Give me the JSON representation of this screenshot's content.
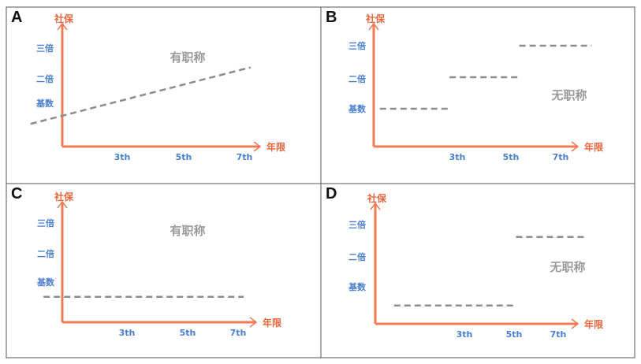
{
  "chart_data": [
    {
      "panel": "A",
      "type": "line",
      "ylabel": "社保",
      "xlabel": "年限",
      "y_levels": [
        "基数",
        "二倍",
        "三倍"
      ],
      "x_ticks": [
        "3th",
        "5th",
        "7th"
      ],
      "annotation": "有职称",
      "series": [
        {
          "x": [
            0,
            7.2
          ],
          "y": [
            0.25,
            2.3
          ]
        }
      ]
    },
    {
      "panel": "B",
      "type": "line",
      "ylabel": "社保",
      "xlabel": "年限",
      "y_levels": [
        "基数",
        "二倍",
        "三倍"
      ],
      "x_ticks": [
        "3th",
        "5th",
        "7th"
      ],
      "annotation": "无职称",
      "series": [
        {
          "x": [
            0,
            2.7
          ],
          "y": [
            1,
            1
          ]
        },
        {
          "x": [
            2.7,
            5.4
          ],
          "y": [
            2,
            2
          ]
        },
        {
          "x": [
            5.4,
            8.2
          ],
          "y": [
            3,
            3
          ]
        }
      ]
    },
    {
      "panel": "C",
      "type": "line",
      "ylabel": "社保",
      "xlabel": "年限",
      "y_levels": [
        "基数",
        "二倍",
        "三倍"
      ],
      "x_ticks": [
        "3th",
        "5th",
        "7th"
      ],
      "annotation": "有职称",
      "series": [
        {
          "x": [
            0,
            7.2
          ],
          "y": [
            0.5,
            0.5
          ]
        }
      ]
    },
    {
      "panel": "D",
      "type": "line",
      "ylabel": "社保",
      "xlabel": "年限",
      "y_levels": [
        "基数",
        "二倍",
        "三倍"
      ],
      "x_ticks": [
        "3th",
        "5th",
        "7th"
      ],
      "annotation": "无职称",
      "series": [
        {
          "x": [
            0,
            5.2
          ],
          "y": [
            0.4,
            0.4
          ]
        },
        {
          "x": [
            5.2,
            8.2
          ],
          "y": [
            2.6,
            2.6
          ]
        }
      ]
    }
  ]
}
